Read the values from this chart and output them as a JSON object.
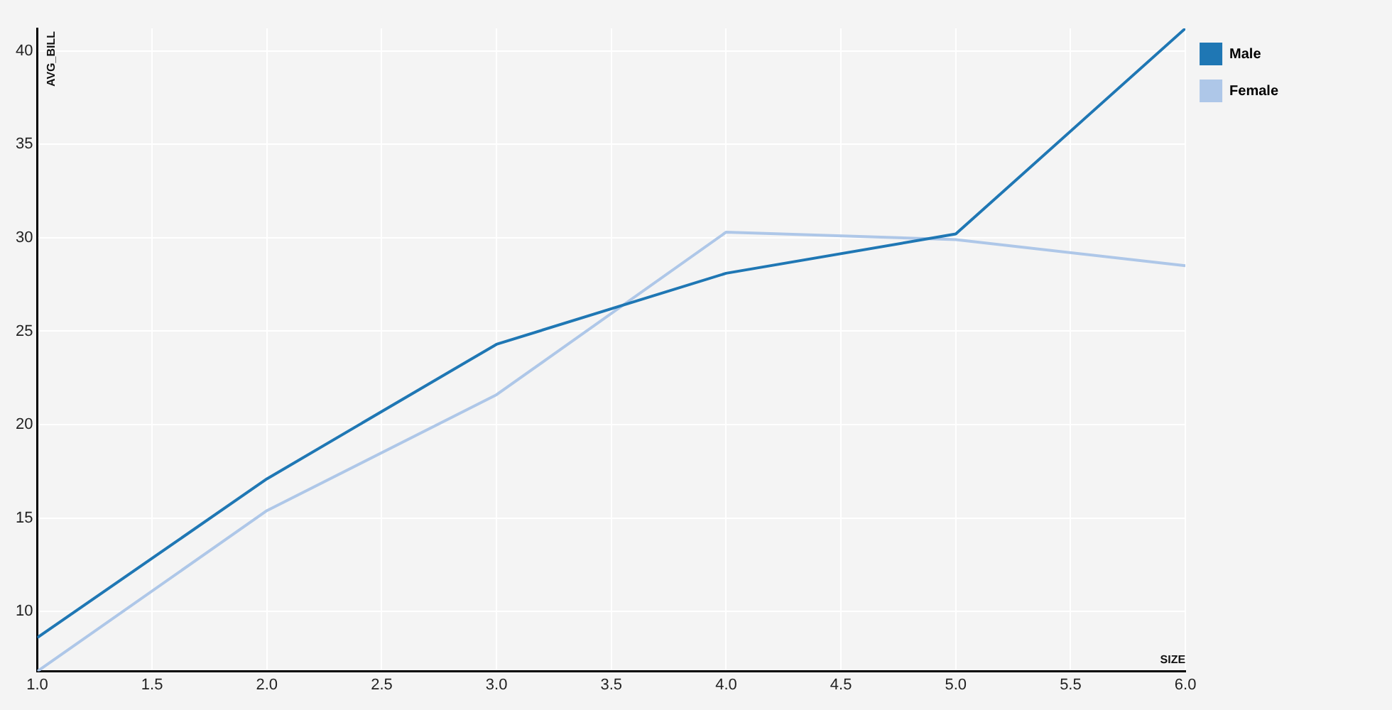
{
  "chart_data": {
    "type": "line",
    "xlabel": "SIZE",
    "ylabel": "AVG_BILL",
    "x": [
      1,
      2,
      3,
      4,
      5,
      6
    ],
    "series": [
      {
        "name": "Male",
        "color": "#1f77b4",
        "values": [
          8.6,
          17.1,
          24.3,
          28.1,
          30.2,
          41.2
        ]
      },
      {
        "name": "Female",
        "color": "#aec7e8",
        "values": [
          6.8,
          15.4,
          21.6,
          30.3,
          29.9,
          28.5
        ]
      }
    ],
    "xlim": [
      1,
      6
    ],
    "ylim": [
      6.8,
      41.2
    ],
    "xticks": [
      {
        "value": 1,
        "label": "1.0"
      },
      1.5,
      {
        "value": 2,
        "label": "2.0"
      },
      2.5,
      {
        "value": 3,
        "label": "3.0"
      },
      3.5,
      {
        "value": 4,
        "label": "4.0"
      },
      4.5,
      {
        "value": 5,
        "label": "5.0"
      },
      5.5,
      {
        "value": 6,
        "label": "6.0"
      }
    ],
    "yticks": [
      10,
      15,
      20,
      25,
      30,
      35,
      40
    ],
    "grid": true,
    "legend": "top right",
    "marker": "none",
    "line_style": "solid"
  }
}
